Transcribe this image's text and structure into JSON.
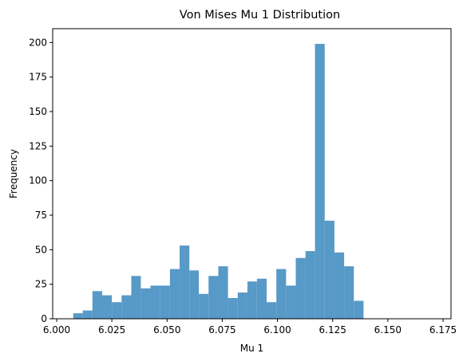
{
  "chart_data": {
    "type": "bar",
    "title": "Von Mises Mu 1 Distribution",
    "xlabel": "Mu 1",
    "ylabel": "Frequency",
    "xlim": [
      6.0,
      6.175
    ],
    "ylim": [
      0,
      210
    ],
    "xticks": [
      "6.000",
      "6.025",
      "6.050",
      "6.075",
      "6.100",
      "6.125",
      "6.150",
      "6.175"
    ],
    "yticks": [
      "0",
      "25",
      "50",
      "75",
      "100",
      "125",
      "150",
      "175",
      "200"
    ],
    "bar_color": "#5799c7",
    "grid": false,
    "legend": "none",
    "bins": [
      {
        "start": 6.0075,
        "end": 6.0118,
        "count": 4
      },
      {
        "start": 6.0118,
        "end": 6.0162,
        "count": 6
      },
      {
        "start": 6.0162,
        "end": 6.0206,
        "count": 20
      },
      {
        "start": 6.0206,
        "end": 6.025,
        "count": 17
      },
      {
        "start": 6.025,
        "end": 6.0294,
        "count": 12
      },
      {
        "start": 6.0294,
        "end": 6.0338,
        "count": 17
      },
      {
        "start": 6.0338,
        "end": 6.0381,
        "count": 31
      },
      {
        "start": 6.0381,
        "end": 6.0425,
        "count": 22
      },
      {
        "start": 6.0425,
        "end": 6.0469,
        "count": 24
      },
      {
        "start": 6.0469,
        "end": 6.0513,
        "count": 24
      },
      {
        "start": 6.0513,
        "end": 6.0557,
        "count": 36
      },
      {
        "start": 6.0557,
        "end": 6.0601,
        "count": 53
      },
      {
        "start": 6.0601,
        "end": 6.0644,
        "count": 35
      },
      {
        "start": 6.0644,
        "end": 6.0688,
        "count": 18
      },
      {
        "start": 6.0688,
        "end": 6.0732,
        "count": 31
      },
      {
        "start": 6.0732,
        "end": 6.0776,
        "count": 38
      },
      {
        "start": 6.0776,
        "end": 6.082,
        "count": 15
      },
      {
        "start": 6.082,
        "end": 6.0864,
        "count": 19
      },
      {
        "start": 6.0864,
        "end": 6.0907,
        "count": 27
      },
      {
        "start": 6.0907,
        "end": 6.0951,
        "count": 29
      },
      {
        "start": 6.0951,
        "end": 6.0995,
        "count": 12
      },
      {
        "start": 6.0995,
        "end": 6.1039,
        "count": 36
      },
      {
        "start": 6.1039,
        "end": 6.1083,
        "count": 24
      },
      {
        "start": 6.1083,
        "end": 6.1127,
        "count": 44
      },
      {
        "start": 6.1127,
        "end": 6.117,
        "count": 49
      },
      {
        "start": 6.117,
        "end": 6.1214,
        "count": 199
      },
      {
        "start": 6.1214,
        "end": 6.1258,
        "count": 71
      },
      {
        "start": 6.1258,
        "end": 6.1302,
        "count": 48
      },
      {
        "start": 6.1302,
        "end": 6.1346,
        "count": 38
      },
      {
        "start": 6.1346,
        "end": 6.139,
        "count": 13
      }
    ]
  }
}
